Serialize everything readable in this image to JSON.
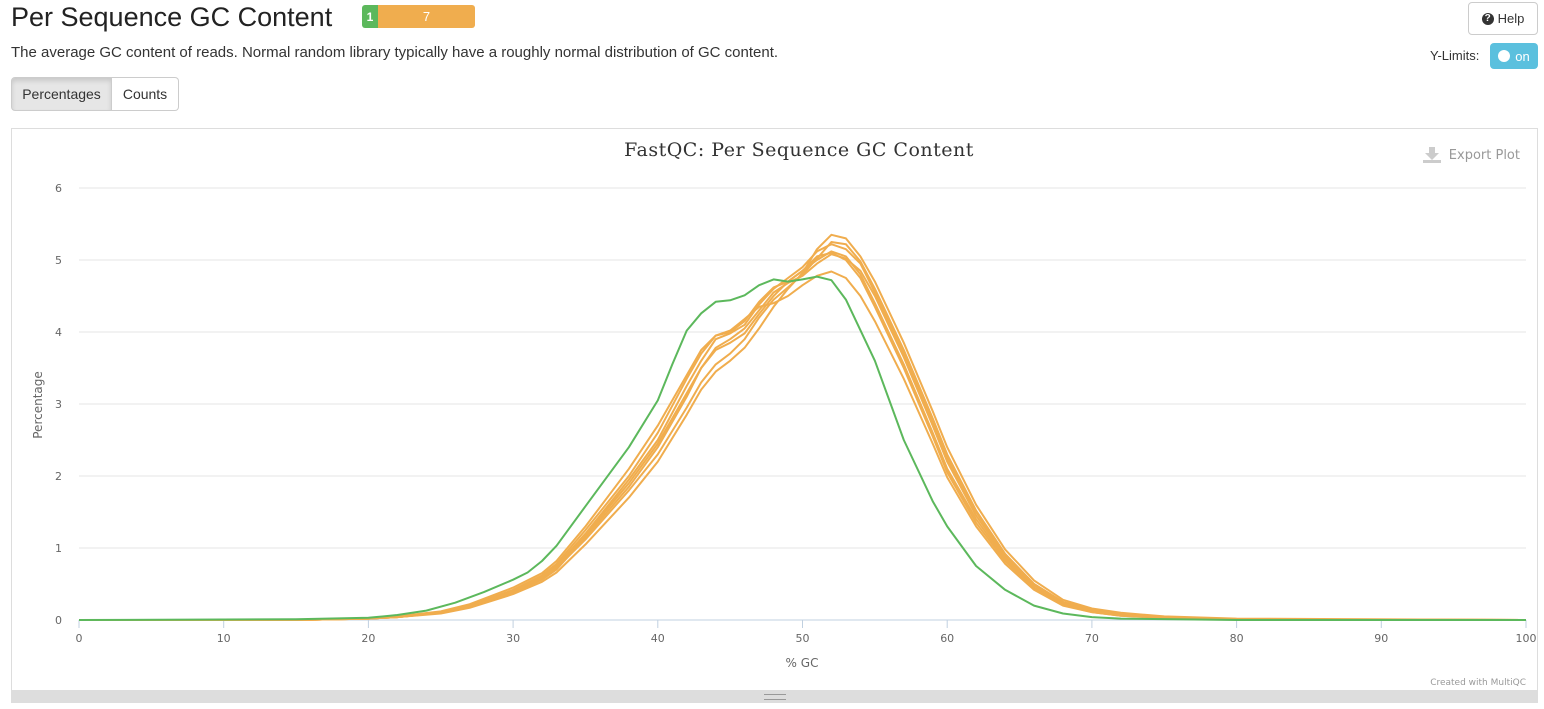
{
  "header": {
    "title": "Per Sequence GC Content",
    "status_pass": "1",
    "status_warn": "7",
    "description": "The average GC content of reads. Normal random library typically have a roughly normal distribution of GC content."
  },
  "controls": {
    "help_label": "Help",
    "ylimits_label": "Y-Limits:",
    "toggle_label": "on",
    "percentages_label": "Percentages",
    "counts_label": "Counts"
  },
  "plot": {
    "export_label": "Export Plot",
    "credit": "Created with MultiQC"
  },
  "colors": {
    "pass": "#5cb85c",
    "warn": "#f0ad4e",
    "toggle": "#5bc0de"
  },
  "chart_data": {
    "type": "line",
    "title": "FastQC: Per Sequence GC Content",
    "xlabel": "% GC",
    "ylabel": "Percentage",
    "xlim": [
      0,
      100
    ],
    "ylim": [
      0,
      6
    ],
    "xticks": [
      0,
      10,
      20,
      30,
      40,
      50,
      60,
      70,
      80,
      90,
      100
    ],
    "yticks": [
      0,
      1,
      2,
      3,
      4,
      5,
      6
    ],
    "grid": true,
    "series": [
      {
        "status": "pass",
        "color": "#5cb85c",
        "points": [
          [
            0,
            0
          ],
          [
            15,
            0.01
          ],
          [
            20,
            0.03
          ],
          [
            22,
            0.07
          ],
          [
            24,
            0.13
          ],
          [
            26,
            0.24
          ],
          [
            28,
            0.39
          ],
          [
            30,
            0.56
          ],
          [
            31,
            0.66
          ],
          [
            32,
            0.82
          ],
          [
            33,
            1.03
          ],
          [
            35,
            1.58
          ],
          [
            38,
            2.4
          ],
          [
            40,
            3.05
          ],
          [
            41,
            3.55
          ],
          [
            42,
            4.02
          ],
          [
            43,
            4.26
          ],
          [
            44,
            4.42
          ],
          [
            45,
            4.44
          ],
          [
            46,
            4.51
          ],
          [
            47,
            4.65
          ],
          [
            48,
            4.73
          ],
          [
            49,
            4.7
          ],
          [
            50,
            4.73
          ],
          [
            51,
            4.77
          ],
          [
            52,
            4.72
          ],
          [
            53,
            4.45
          ],
          [
            55,
            3.6
          ],
          [
            57,
            2.5
          ],
          [
            59,
            1.65
          ],
          [
            60,
            1.3
          ],
          [
            62,
            0.75
          ],
          [
            64,
            0.42
          ],
          [
            66,
            0.2
          ],
          [
            68,
            0.09
          ],
          [
            70,
            0.04
          ],
          [
            72,
            0.02
          ],
          [
            80,
            0
          ],
          [
            100,
            0
          ]
        ]
      },
      {
        "status": "warn",
        "color": "#f0ad4e",
        "points": [
          [
            0,
            0
          ],
          [
            15,
            0
          ],
          [
            20,
            0.02
          ],
          [
            22,
            0.04
          ],
          [
            25,
            0.1
          ],
          [
            27,
            0.18
          ],
          [
            30,
            0.38
          ],
          [
            32,
            0.56
          ],
          [
            33,
            0.7
          ],
          [
            35,
            1.15
          ],
          [
            38,
            1.85
          ],
          [
            40,
            2.4
          ],
          [
            42,
            3.1
          ],
          [
            43,
            3.5
          ],
          [
            44,
            3.75
          ],
          [
            45,
            3.85
          ],
          [
            46,
            3.98
          ],
          [
            47,
            4.25
          ],
          [
            48,
            4.5
          ],
          [
            49,
            4.7
          ],
          [
            50,
            4.85
          ],
          [
            51,
            5.0
          ],
          [
            52,
            5.12
          ],
          [
            53,
            5.05
          ],
          [
            54,
            4.8
          ],
          [
            55,
            4.4
          ],
          [
            57,
            3.55
          ],
          [
            59,
            2.6
          ],
          [
            60,
            2.1
          ],
          [
            62,
            1.4
          ],
          [
            64,
            0.85
          ],
          [
            66,
            0.45
          ],
          [
            68,
            0.22
          ],
          [
            70,
            0.12
          ],
          [
            72,
            0.07
          ],
          [
            75,
            0.03
          ],
          [
            80,
            0.01
          ],
          [
            100,
            0
          ]
        ]
      },
      {
        "status": "warn",
        "color": "#f0ad4e",
        "points": [
          [
            0,
            0
          ],
          [
            15,
            0
          ],
          [
            20,
            0.02
          ],
          [
            22,
            0.04
          ],
          [
            25,
            0.1
          ],
          [
            27,
            0.19
          ],
          [
            30,
            0.4
          ],
          [
            32,
            0.6
          ],
          [
            33,
            0.75
          ],
          [
            35,
            1.2
          ],
          [
            38,
            1.95
          ],
          [
            40,
            2.5
          ],
          [
            42,
            3.25
          ],
          [
            43,
            3.6
          ],
          [
            44,
            3.9
          ],
          [
            45,
            3.98
          ],
          [
            46,
            4.1
          ],
          [
            47,
            4.38
          ],
          [
            48,
            4.6
          ],
          [
            49,
            4.75
          ],
          [
            50,
            4.9
          ],
          [
            51,
            5.12
          ],
          [
            52,
            5.22
          ],
          [
            53,
            5.15
          ],
          [
            54,
            4.95
          ],
          [
            55,
            4.55
          ],
          [
            57,
            3.7
          ],
          [
            59,
            2.75
          ],
          [
            60,
            2.25
          ],
          [
            62,
            1.5
          ],
          [
            64,
            0.9
          ],
          [
            66,
            0.5
          ],
          [
            68,
            0.25
          ],
          [
            70,
            0.14
          ],
          [
            72,
            0.08
          ],
          [
            75,
            0.04
          ],
          [
            80,
            0.01
          ],
          [
            100,
            0
          ]
        ]
      },
      {
        "status": "warn",
        "color": "#f0ad4e",
        "points": [
          [
            0,
            0
          ],
          [
            15,
            0
          ],
          [
            20,
            0.02
          ],
          [
            22,
            0.05
          ],
          [
            25,
            0.11
          ],
          [
            27,
            0.2
          ],
          [
            30,
            0.42
          ],
          [
            32,
            0.62
          ],
          [
            33,
            0.78
          ],
          [
            35,
            1.25
          ],
          [
            38,
            2.0
          ],
          [
            40,
            2.6
          ],
          [
            42,
            3.35
          ],
          [
            43,
            3.7
          ],
          [
            44,
            3.95
          ],
          [
            45,
            4.0
          ],
          [
            46,
            4.15
          ],
          [
            47,
            4.42
          ],
          [
            48,
            4.62
          ],
          [
            49,
            4.7
          ],
          [
            50,
            4.85
          ],
          [
            51,
            5.05
          ],
          [
            52,
            5.1
          ],
          [
            53,
            5.0
          ],
          [
            54,
            4.75
          ],
          [
            55,
            4.35
          ],
          [
            57,
            3.5
          ],
          [
            59,
            2.55
          ],
          [
            60,
            2.05
          ],
          [
            62,
            1.35
          ],
          [
            64,
            0.82
          ],
          [
            66,
            0.44
          ],
          [
            68,
            0.21
          ],
          [
            70,
            0.11
          ],
          [
            72,
            0.06
          ],
          [
            75,
            0.03
          ],
          [
            80,
            0.01
          ],
          [
            100,
            0
          ]
        ]
      },
      {
        "status": "warn",
        "color": "#f0ad4e",
        "points": [
          [
            0,
            0
          ],
          [
            15,
            0
          ],
          [
            20,
            0.02
          ],
          [
            22,
            0.04
          ],
          [
            25,
            0.09
          ],
          [
            27,
            0.17
          ],
          [
            30,
            0.36
          ],
          [
            32,
            0.53
          ],
          [
            33,
            0.66
          ],
          [
            35,
            1.05
          ],
          [
            38,
            1.7
          ],
          [
            40,
            2.2
          ],
          [
            42,
            2.85
          ],
          [
            43,
            3.2
          ],
          [
            44,
            3.45
          ],
          [
            45,
            3.6
          ],
          [
            46,
            3.78
          ],
          [
            47,
            4.05
          ],
          [
            48,
            4.35
          ],
          [
            49,
            4.6
          ],
          [
            50,
            4.82
          ],
          [
            51,
            5.15
          ],
          [
            52,
            5.35
          ],
          [
            53,
            5.3
          ],
          [
            54,
            5.05
          ],
          [
            55,
            4.7
          ],
          [
            57,
            3.85
          ],
          [
            59,
            2.9
          ],
          [
            60,
            2.4
          ],
          [
            62,
            1.6
          ],
          [
            64,
            0.98
          ],
          [
            66,
            0.55
          ],
          [
            68,
            0.28
          ],
          [
            70,
            0.16
          ],
          [
            72,
            0.1
          ],
          [
            75,
            0.05
          ],
          [
            80,
            0.02
          ],
          [
            100,
            0
          ]
        ]
      },
      {
        "status": "warn",
        "color": "#f0ad4e",
        "points": [
          [
            0,
            0
          ],
          [
            15,
            0
          ],
          [
            20,
            0.02
          ],
          [
            22,
            0.05
          ],
          [
            25,
            0.12
          ],
          [
            27,
            0.22
          ],
          [
            30,
            0.45
          ],
          [
            32,
            0.65
          ],
          [
            33,
            0.82
          ],
          [
            35,
            1.3
          ],
          [
            38,
            2.1
          ],
          [
            40,
            2.7
          ],
          [
            42,
            3.4
          ],
          [
            43,
            3.75
          ],
          [
            44,
            3.95
          ],
          [
            45,
            4.02
          ],
          [
            46,
            4.18
          ],
          [
            47,
            4.35
          ],
          [
            48,
            4.4
          ],
          [
            49,
            4.5
          ],
          [
            50,
            4.65
          ],
          [
            51,
            4.78
          ],
          [
            52,
            4.84
          ],
          [
            53,
            4.75
          ],
          [
            54,
            4.5
          ],
          [
            55,
            4.15
          ],
          [
            57,
            3.35
          ],
          [
            59,
            2.45
          ],
          [
            60,
            1.98
          ],
          [
            62,
            1.3
          ],
          [
            64,
            0.78
          ],
          [
            66,
            0.42
          ],
          [
            68,
            0.2
          ],
          [
            70,
            0.11
          ],
          [
            72,
            0.06
          ],
          [
            75,
            0.03
          ],
          [
            80,
            0.01
          ],
          [
            100,
            0
          ]
        ]
      },
      {
        "status": "warn",
        "color": "#f0ad4e",
        "points": [
          [
            0,
            0
          ],
          [
            15,
            0
          ],
          [
            20,
            0.02
          ],
          [
            22,
            0.04
          ],
          [
            25,
            0.1
          ],
          [
            27,
            0.18
          ],
          [
            30,
            0.39
          ],
          [
            32,
            0.58
          ],
          [
            33,
            0.72
          ],
          [
            35,
            1.12
          ],
          [
            38,
            1.8
          ],
          [
            40,
            2.3
          ],
          [
            42,
            2.95
          ],
          [
            43,
            3.3
          ],
          [
            44,
            3.55
          ],
          [
            45,
            3.7
          ],
          [
            46,
            3.9
          ],
          [
            47,
            4.2
          ],
          [
            48,
            4.45
          ],
          [
            49,
            4.62
          ],
          [
            50,
            4.8
          ],
          [
            51,
            5.02
          ],
          [
            52,
            5.25
          ],
          [
            53,
            5.22
          ],
          [
            54,
            4.98
          ],
          [
            55,
            4.6
          ],
          [
            57,
            3.75
          ],
          [
            59,
            2.8
          ],
          [
            60,
            2.3
          ],
          [
            62,
            1.52
          ],
          [
            64,
            0.92
          ],
          [
            66,
            0.5
          ],
          [
            68,
            0.25
          ],
          [
            70,
            0.14
          ],
          [
            72,
            0.08
          ],
          [
            75,
            0.04
          ],
          [
            80,
            0.01
          ],
          [
            100,
            0
          ]
        ]
      },
      {
        "status": "warn",
        "color": "#f0ad4e",
        "points": [
          [
            0,
            0
          ],
          [
            15,
            0
          ],
          [
            20,
            0.02
          ],
          [
            22,
            0.04
          ],
          [
            25,
            0.1
          ],
          [
            27,
            0.19
          ],
          [
            30,
            0.4
          ],
          [
            32,
            0.6
          ],
          [
            33,
            0.74
          ],
          [
            35,
            1.18
          ],
          [
            38,
            1.9
          ],
          [
            40,
            2.45
          ],
          [
            42,
            3.15
          ],
          [
            43,
            3.5
          ],
          [
            44,
            3.78
          ],
          [
            45,
            3.9
          ],
          [
            46,
            4.05
          ],
          [
            47,
            4.3
          ],
          [
            48,
            4.55
          ],
          [
            49,
            4.68
          ],
          [
            50,
            4.78
          ],
          [
            51,
            4.95
          ],
          [
            52,
            5.08
          ],
          [
            53,
            5.02
          ],
          [
            54,
            4.85
          ],
          [
            55,
            4.5
          ],
          [
            57,
            3.65
          ],
          [
            59,
            2.7
          ],
          [
            60,
            2.2
          ],
          [
            62,
            1.45
          ],
          [
            64,
            0.88
          ],
          [
            66,
            0.48
          ],
          [
            68,
            0.23
          ],
          [
            70,
            0.13
          ],
          [
            72,
            0.07
          ],
          [
            75,
            0.03
          ],
          [
            80,
            0.01
          ],
          [
            100,
            0
          ]
        ]
      }
    ]
  }
}
